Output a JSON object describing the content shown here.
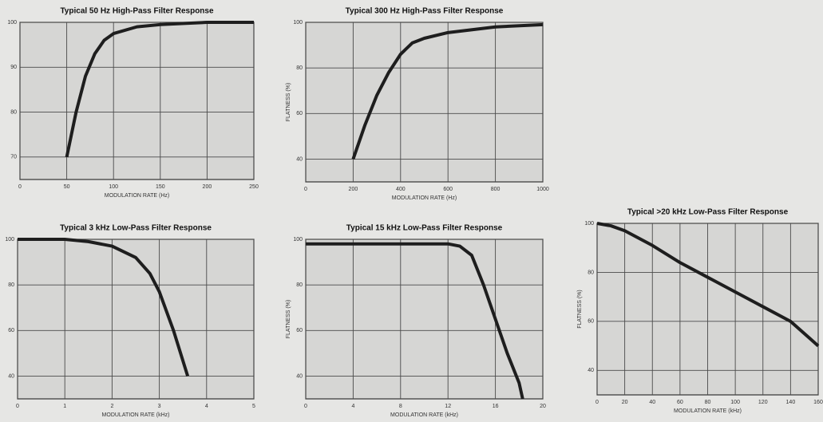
{
  "chart_data": [
    {
      "type": "line",
      "title": "Typical 50 Hz High-Pass Filter Response",
      "xlabel": "MODULATION RATE (Hz)",
      "x": [
        50,
        60,
        70,
        80,
        90,
        100,
        125,
        150,
        200,
        250
      ],
      "values": [
        70,
        80,
        88,
        93,
        96,
        97.5,
        99,
        99.5,
        100,
        100
      ],
      "color": "#1e1e1e",
      "xlim": [
        0,
        250
      ],
      "xticks": [
        0,
        50,
        100,
        150,
        200,
        250
      ],
      "ylim": [
        65,
        100
      ],
      "yticks": [
        70,
        80,
        90,
        100
      ],
      "grid": true
    },
    {
      "type": "line",
      "title": "Typical 300 Hz High-Pass Filter Response",
      "xlabel": "MODULATION RATE (Hz)",
      "ylabel": "FLATNESS (%)",
      "x": [
        200,
        250,
        300,
        350,
        400,
        450,
        500,
        600,
        800,
        1000
      ],
      "values": [
        40,
        55,
        68,
        78,
        86,
        91,
        93,
        95.5,
        98,
        99
      ],
      "color": "#1e1e1e",
      "xlim": [
        0,
        1000
      ],
      "xticks": [
        0,
        200,
        400,
        600,
        800,
        1000
      ],
      "ylim": [
        30,
        100
      ],
      "yticks": [
        40,
        60,
        80,
        100
      ],
      "grid": true
    },
    {
      "type": "line",
      "title": "Typical 3 kHz Low-Pass Filter Response",
      "xlabel": "MODULATION RATE (kHz)",
      "x": [
        0,
        1,
        1.5,
        2,
        2.5,
        2.8,
        3,
        3.3,
        3.6
      ],
      "values": [
        100,
        100,
        99,
        97,
        92,
        85,
        77,
        60,
        40
      ],
      "color": "#1e1e1e",
      "xlim": [
        0,
        5
      ],
      "xticks": [
        0,
        1,
        2,
        3,
        4,
        5
      ],
      "ylim": [
        30,
        100
      ],
      "yticks": [
        40,
        60,
        80,
        100
      ],
      "grid": true
    },
    {
      "type": "line",
      "title": "Typical 15 kHz Low-Pass Filter Response",
      "xlabel": "MODULATION RATE (kHz)",
      "ylabel": "FLATNESS (%)",
      "x": [
        0,
        8,
        12,
        13,
        14,
        15,
        16,
        17,
        18,
        18.3
      ],
      "values": [
        98,
        98,
        98,
        97,
        93,
        80,
        65,
        50,
        37,
        30
      ],
      "color": "#1e1e1e",
      "xlim": [
        0,
        20
      ],
      "xticks": [
        0,
        4,
        8,
        12,
        16,
        20
      ],
      "ylim": [
        30,
        100
      ],
      "yticks": [
        40,
        60,
        80,
        100
      ],
      "grid": true
    },
    {
      "type": "line",
      "title": "Typical >20 kHz Low-Pass Filter Response",
      "xlabel": "MODULATION RATE (kHz)",
      "ylabel": "FLATNESS (%)",
      "x": [
        0,
        10,
        20,
        40,
        60,
        80,
        100,
        120,
        140,
        160
      ],
      "values": [
        100,
        99,
        97,
        91,
        84,
        78,
        72,
        66,
        60,
        50
      ],
      "color": "#1e1e1e",
      "xlim": [
        0,
        160
      ],
      "xticks": [
        0,
        20,
        40,
        60,
        80,
        100,
        120,
        140,
        160
      ],
      "ylim": [
        30,
        100
      ],
      "yticks": [
        40,
        60,
        80,
        100
      ],
      "grid": true
    }
  ]
}
